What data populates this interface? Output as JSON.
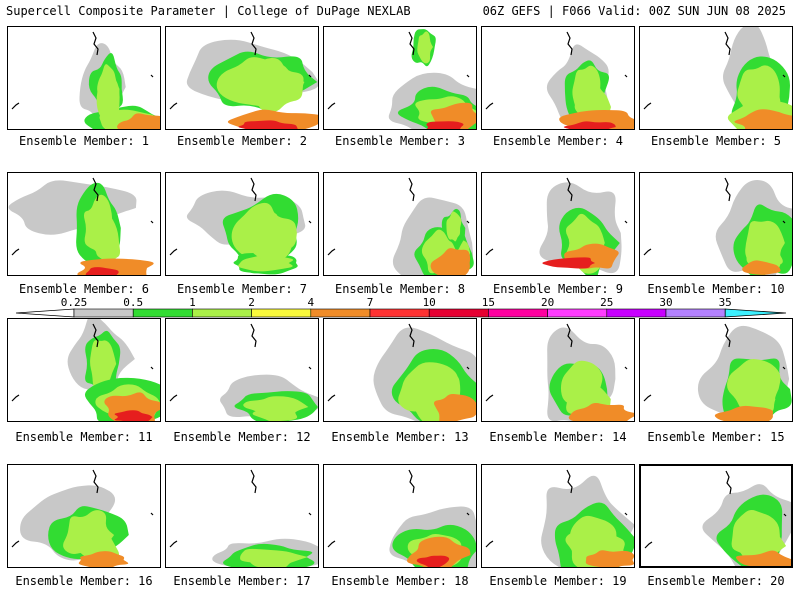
{
  "header": {
    "title_left": "Supercell Composite Parameter | College of DuPage NEXLAB",
    "title_right": "06Z GEFS | F066 Valid: 00Z SUN JUN 08 2025"
  },
  "colors": {
    "low": "#c8c8c8",
    "green": "#32dc32",
    "lime": "#aaf048",
    "yellow": "#fafa3c",
    "orange": "#f08c28",
    "red": "#e61e1e",
    "coast": "#000000"
  },
  "legend": {
    "labels": [
      "0.25",
      "0.5",
      "1",
      "2",
      "4",
      "7",
      "10",
      "15",
      "20",
      "25",
      "30",
      "35"
    ],
    "colors": [
      "#c8c8c8",
      "#32dc32",
      "#aaf048",
      "#fafa3c",
      "#f08c28",
      "#ff3232",
      "#e60032",
      "#ff00a0",
      "#ff3cff",
      "#c800ff",
      "#b482ff",
      "#3cf0ff"
    ]
  },
  "members": [
    {
      "label": "Ensemble Member: 1"
    },
    {
      "label": "Ensemble Member: 2"
    },
    {
      "label": "Ensemble Member: 3"
    },
    {
      "label": "Ensemble Member: 4"
    },
    {
      "label": "Ensemble Member: 5"
    },
    {
      "label": "Ensemble Member: 6"
    },
    {
      "label": "Ensemble Member: 7"
    },
    {
      "label": "Ensemble Member: 8"
    },
    {
      "label": "Ensemble Member: 9"
    },
    {
      "label": "Ensemble Member: 10"
    },
    {
      "label": "Ensemble Member: 11"
    },
    {
      "label": "Ensemble Member: 12"
    },
    {
      "label": "Ensemble Member: 13"
    },
    {
      "label": "Ensemble Member: 14"
    },
    {
      "label": "Ensemble Member: 15"
    },
    {
      "label": "Ensemble Member: 16"
    },
    {
      "label": "Ensemble Member: 17"
    },
    {
      "label": "Ensemble Member: 18"
    },
    {
      "label": "Ensemble Member: 19"
    },
    {
      "label": "Ensemble Member: 20"
    }
  ]
}
